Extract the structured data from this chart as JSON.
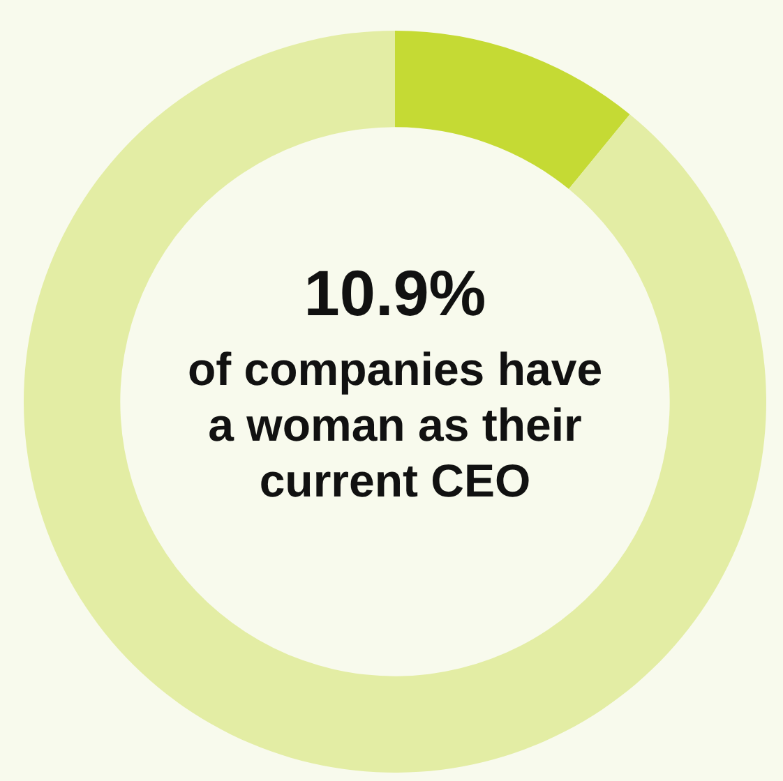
{
  "chart_data": {
    "type": "donut",
    "categories": [
      null,
      null
    ],
    "values": [
      10.9,
      89.1
    ],
    "colors": [
      "#c5da34",
      "#e3eda4"
    ],
    "value_labels": [
      "10.9%",
      null
    ],
    "annotations": [
      "of companies have a woman as their current CEO"
    ]
  }
}
